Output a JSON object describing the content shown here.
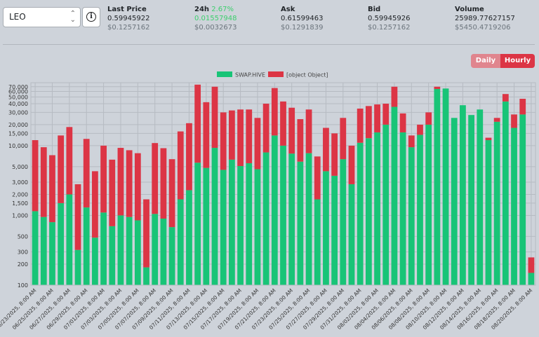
{
  "market": {
    "selected": "LEO"
  },
  "stats": {
    "last_price": {
      "label": "Last Price",
      "value": "0.59945922",
      "usd": "$0.1257162"
    },
    "change_24h": {
      "label": "24h",
      "pct": "2.67%",
      "value": "0.01557948",
      "usd": "$0.0032673"
    },
    "ask": {
      "label": "Ask",
      "value": "0.61599463",
      "usd": "$0.1291839"
    },
    "bid": {
      "label": "Bid",
      "value": "0.59945926",
      "usd": "$0.1257162"
    },
    "volume": {
      "label": "Volume",
      "value": "25989.77627157",
      "usd": "$5450.4719206"
    }
  },
  "toggle": {
    "daily": "Daily",
    "hourly": "Hourly",
    "active": "Hourly"
  },
  "colors": {
    "green": "#18c477",
    "red": "#dc3545"
  },
  "chart_data": {
    "type": "bar",
    "stacked": true,
    "y_scale": "log",
    "ylim": [
      100,
      80000
    ],
    "y_ticks": [
      100,
      200,
      300,
      500,
      1000,
      1500,
      2000,
      3000,
      5000,
      10000,
      15000,
      20000,
      30000,
      40000,
      50000,
      60000,
      70000
    ],
    "y_tick_labels": [
      "100",
      "200",
      "300",
      "500",
      "1,000",
      "1,500",
      "2,000",
      "3,000",
      "5,000",
      "10,000",
      "15,000",
      "20,000",
      "30,000",
      "40,000",
      "50,000",
      "60,000",
      "70,000"
    ],
    "x_tick_labels": [
      "06/23/2025, 8:00 AM",
      "06/25/2025, 8:00 AM",
      "06/27/2025, 8:00 AM",
      "06/29/2025, 8:00 AM",
      "07/01/2025, 8:00 AM",
      "07/03/2025, 8:00 AM",
      "07/05/2025, 8:00 AM",
      "07/07/2025, 8:00 AM",
      "07/09/2025, 8:00 AM",
      "07/11/2025, 8:00 AM",
      "07/13/2025, 8:00 AM",
      "07/15/2025, 8:00 AM",
      "07/17/2025, 8:00 AM",
      "07/19/2025, 8:00 AM",
      "07/21/2025, 8:00 AM",
      "07/23/2025, 8:00 AM",
      "07/25/2025, 8:00 AM",
      "07/27/2025, 8:00 AM",
      "07/29/2025, 8:00 AM",
      "07/31/2025, 8:00 AM",
      "08/02/2025, 8:00 AM",
      "08/04/2025, 8:00 AM",
      "08/06/2025, 8:00 AM",
      "08/08/2025, 8:00 AM",
      "08/10/2025, 8:00 AM",
      "08/12/2025, 8:00 AM",
      "08/14/2025, 8:00 AM",
      "08/16/2025, 8:00 AM",
      "08/18/2025, 8:00 AM",
      "08/20/2025, 8:00 AM"
    ],
    "legend": [
      "SWAP.HIVE",
      "[object Object]"
    ],
    "legend_position": "top-center",
    "grid": true,
    "series": [
      {
        "name": "SWAP.HIVE",
        "color": "#18c477",
        "values": [
          1150,
          950,
          800,
          1500,
          2000,
          320,
          1300,
          480,
          1100,
          700,
          1000,
          950,
          850,
          180,
          1050,
          900,
          680,
          1700,
          2300,
          5700,
          4800,
          9300,
          4500,
          6300,
          5100,
          5600,
          4600,
          8000,
          14000,
          10000,
          7700,
          5900,
          7800,
          1700,
          4300,
          3700,
          6400,
          2800,
          11000,
          12800,
          15500,
          20000,
          36000,
          15500,
          9500,
          14300,
          20000,
          65000,
          66000,
          25000,
          38000,
          27500,
          33000,
          12000,
          22000,
          43000,
          18000,
          28000,
          150
        ]
      },
      {
        "name": "[object Object]",
        "color": "#dc3545",
        "values": [
          10850,
          8550,
          6500,
          12500,
          16500,
          2480,
          11200,
          3820,
          8900,
          5600,
          8300,
          7650,
          6950,
          1520,
          9850,
          8300,
          5720,
          14300,
          18700,
          69300,
          37200,
          60700,
          25500,
          25700,
          27900,
          27400,
          20400,
          32000,
          53000,
          33000,
          27300,
          18100,
          25200,
          5300,
          13700,
          11300,
          18600,
          7200,
          23000,
          24200,
          23500,
          20000,
          34000,
          13500,
          4500,
          5700,
          10000,
          5000,
          0,
          0,
          0,
          0,
          0,
          1000,
          3000,
          12000,
          10000,
          19000,
          100
        ]
      }
    ]
  }
}
